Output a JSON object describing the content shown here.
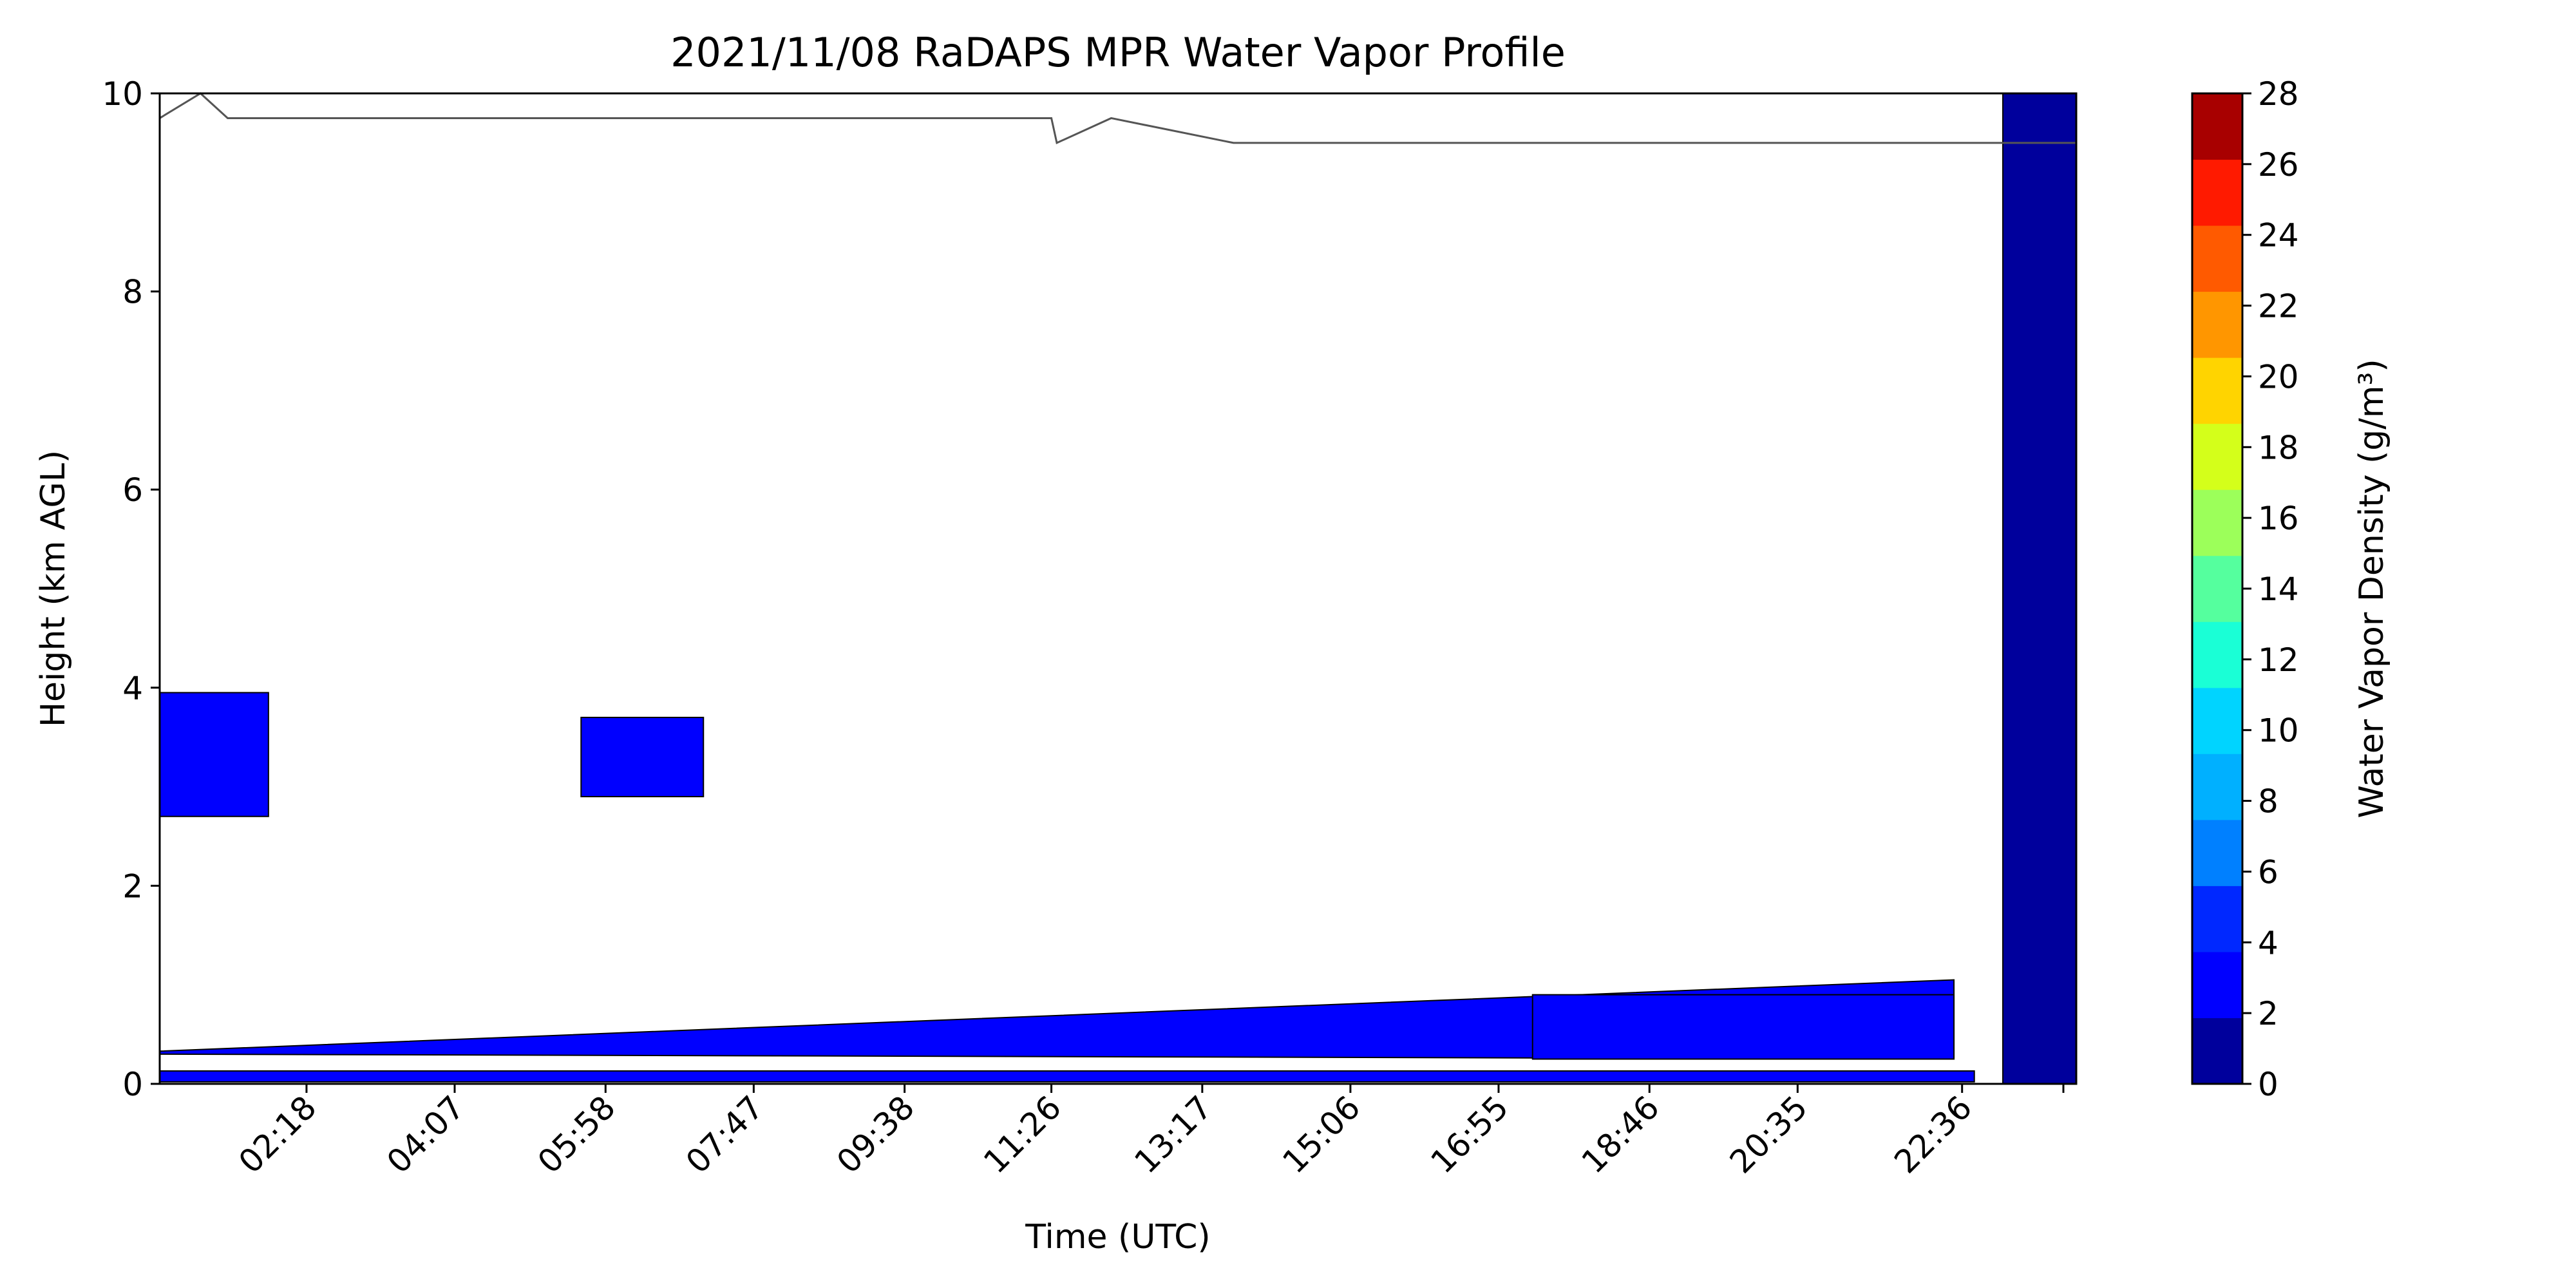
{
  "chart_data": {
    "type": "heatmap",
    "title": "2021/11/08 RaDAPS MPR Water Vapor Profile",
    "xlabel": "Time (UTC)",
    "ylabel": "Height (km AGL)",
    "xlim": [
      "00:30",
      "24:00"
    ],
    "ylim": [
      0,
      10
    ],
    "grid": false,
    "y_ticks": [
      "0",
      "2",
      "4",
      "6",
      "8",
      "10"
    ],
    "x_ticks": [
      "02:18",
      "04:07",
      "05:58",
      "07:47",
      "09:38",
      "11:26",
      "13:17",
      "15:06",
      "16:55",
      "18:46",
      "20:35",
      "22:36"
    ],
    "colorbar": {
      "label": "Water Vapor Density (g/m³)",
      "ticks": [
        "0",
        "2",
        "4",
        "6",
        "8",
        "10",
        "12",
        "14",
        "16",
        "18",
        "20",
        "22",
        "24",
        "26",
        "28"
      ],
      "levels": [
        0,
        2,
        4,
        6,
        8,
        10,
        12,
        14,
        16,
        18,
        20,
        22,
        24,
        26,
        28
      ],
      "colors": [
        "#00009c",
        "#0000ff",
        "#0028ff",
        "#0080ff",
        "#00b0ff",
        "#00d4ff",
        "#1affd6",
        "#55ff9e",
        "#9cff5a",
        "#d4ff1a",
        "#ffd400",
        "#ff9600",
        "#ff5a00",
        "#ff1a00",
        "#a80000"
      ]
    },
    "fill_colors": {
      "lowest_level": "#00009c",
      "level_2_4": "#0000ff",
      "contour": "#000000",
      "cloud_line": "#555555"
    },
    "contours": [
      {
        "level": "0-2",
        "t": [
          "23:06",
          "24:00"
        ],
        "z": [
          0,
          10
        ]
      },
      {
        "level": "2-4",
        "t": [
          "00:30",
          "22:45"
        ],
        "z": [
          0.02,
          0.13
        ],
        "note_text": ""
      },
      {
        "level": "2-4",
        "t": [
          "00:30",
          "22:30"
        ],
        "z_low": [
          0.3,
          0.25
        ],
        "z_high": [
          0.33,
          1.05
        ]
      },
      {
        "level": "2-4",
        "t": [
          "00:30",
          "01:50"
        ],
        "z": [
          2.7,
          3.95
        ]
      },
      {
        "level": "2-4",
        "t": [
          "05:40",
          "07:10"
        ],
        "z": [
          2.9,
          3.7
        ]
      },
      {
        "level": "2-4",
        "t": [
          "17:20",
          "22:30"
        ],
        "z": [
          0.25,
          0.9
        ]
      }
    ],
    "cloud_base_line": {
      "t": [
        "00:30",
        "01:00",
        "01:20",
        "11:26",
        "11:30",
        "12:10",
        "13:40",
        "24:00"
      ],
      "z": [
        9.75,
        10.0,
        9.75,
        9.75,
        9.5,
        9.75,
        9.5,
        9.5
      ]
    }
  }
}
